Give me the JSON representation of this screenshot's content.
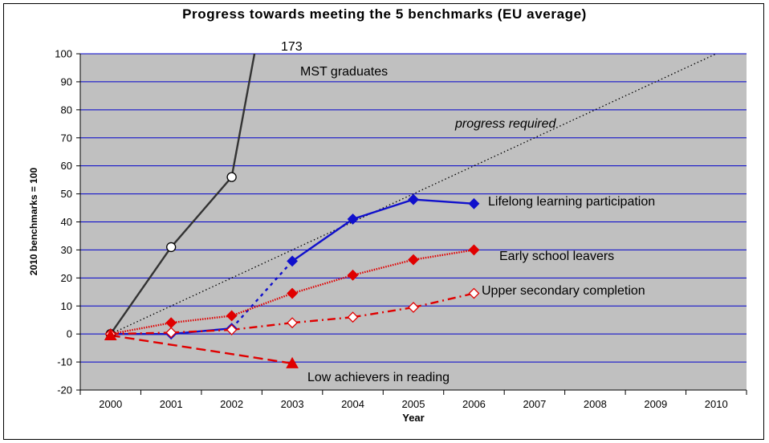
{
  "chart_data": {
    "type": "line",
    "title": "Progress towards meeting the 5 benchmarks (EU average)",
    "xlabel": "Year",
    "ylabel": "2010 benchmarks = 100",
    "ylim": [
      -20,
      100
    ],
    "yticks": [
      -20,
      -10,
      0,
      10,
      20,
      30,
      40,
      50,
      60,
      70,
      80,
      90,
      100
    ],
    "categories": [
      "2000",
      "2001",
      "2002",
      "2003",
      "2004",
      "2005",
      "2006",
      "2007",
      "2008",
      "2009",
      "2010"
    ],
    "grid": true,
    "background": "#c0c0c0",
    "gridColor": "#0000cc",
    "series": [
      {
        "name": "MST graduates",
        "x": [
          "2000",
          "2001",
          "2002",
          "2003"
        ],
        "values": [
          0,
          31,
          56,
          173
        ],
        "color": "#333333",
        "marker": "circle-open",
        "style": "solid",
        "label_value": "173"
      },
      {
        "name": "progress required",
        "x": [
          "2000",
          "2010"
        ],
        "values": [
          0,
          100
        ],
        "color": "#000000",
        "marker": "none",
        "style": "dotted"
      },
      {
        "name": "Lifelong learning participation",
        "x": [
          "2000",
          "2001",
          "2002",
          "2003",
          "2004",
          "2005",
          "2006"
        ],
        "values": [
          0,
          0,
          2,
          26,
          41,
          48,
          46.5
        ],
        "color": "#1010cc",
        "marker": "diamond-filled",
        "style": "solid",
        "dashed_segments": [
          2
        ]
      },
      {
        "name": "Early school leavers",
        "x": [
          "2000",
          "2001",
          "2002",
          "2003",
          "2004",
          "2005",
          "2006"
        ],
        "values": [
          0,
          4,
          6.5,
          14.5,
          21,
          26.5,
          30
        ],
        "color": "#e00000",
        "marker": "diamond-filled",
        "style": "dotted-thick"
      },
      {
        "name": "Upper secondary completion",
        "x": [
          "2000",
          "2001",
          "2002",
          "2003",
          "2004",
          "2005",
          "2006"
        ],
        "values": [
          0,
          0.5,
          1.5,
          4,
          6,
          9.5,
          14.5
        ],
        "color": "#e00000",
        "marker": "diamond-open",
        "style": "dashdot"
      },
      {
        "name": "Low achievers in reading",
        "x": [
          "2000",
          "2003"
        ],
        "values": [
          -0.5,
          -10.5
        ],
        "color": "#e00000",
        "marker": "triangle-filled",
        "style": "dashed"
      }
    ]
  },
  "annotations": {
    "mst_value": "173",
    "mst": "MST graduates",
    "progress": "progress required",
    "lifelong": "Lifelong learning participation",
    "early": "Early school leavers",
    "upper": "Upper secondary completion",
    "low": "Low achievers in reading"
  }
}
